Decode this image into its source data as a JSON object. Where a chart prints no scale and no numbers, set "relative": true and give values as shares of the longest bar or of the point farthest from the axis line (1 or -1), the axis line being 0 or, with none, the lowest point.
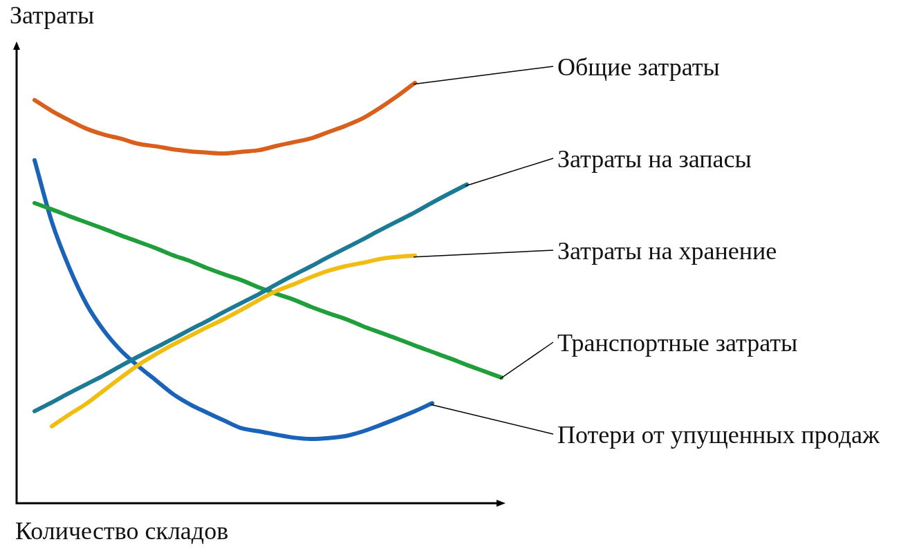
{
  "chart_data": {
    "type": "line",
    "xlabel": "Количество складов",
    "ylabel": "Затраты",
    "relative": true,
    "categories": [
      null,
      null,
      null,
      null,
      null,
      null,
      null,
      null,
      null,
      null,
      null,
      null,
      null,
      null,
      null,
      null,
      null,
      null,
      null,
      null,
      null,
      null,
      null,
      null,
      null,
      null,
      null,
      null,
      null
    ],
    "series": [
      {
        "name": "Общие затраты",
        "color": "#d95f1c",
        "values": [
          null,
          0.959,
          0.933,
          0.911,
          0.891,
          0.877,
          0.867,
          0.855,
          0.849,
          0.842,
          0.837,
          0.834,
          0.832,
          0.836,
          0.84,
          0.85,
          0.859,
          0.868,
          0.883,
          0.898,
          0.916,
          0.941,
          0.969,
          1,
          null,
          null,
          null,
          null,
          null
        ]
      },
      {
        "name": "Затраты на запасы",
        "color": "#1d7a94",
        "values": [
          null,
          0.219,
          0.24,
          0.262,
          0.283,
          0.304,
          0.327,
          0.349,
          0.37,
          0.391,
          0.413,
          0.434,
          0.456,
          0.477,
          0.498,
          0.521,
          0.543,
          0.564,
          0.586,
          0.607,
          0.628,
          0.65,
          0.671,
          0.692,
          0.715,
          0.737,
          0.758,
          null,
          null
        ]
      },
      {
        "name": "Затраты на хранение",
        "color": "#f2bd12",
        "values": [
          null,
          null,
          0.183,
          0.211,
          0.237,
          0.268,
          0.299,
          0.329,
          0.354,
          0.377,
          0.398,
          0.419,
          0.439,
          0.461,
          0.484,
          0.505,
          0.521,
          0.538,
          0.553,
          0.564,
          0.572,
          0.581,
          0.586,
          0.589,
          null,
          null,
          null,
          null,
          null
        ]
      },
      {
        "name": "Транспортные затраты",
        "color": "#1f9e3b",
        "values": [
          null,
          0.714,
          0.699,
          0.683,
          0.668,
          0.653,
          0.637,
          0.622,
          0.607,
          0.59,
          0.576,
          0.559,
          0.544,
          0.53,
          0.513,
          0.498,
          0.484,
          0.467,
          0.452,
          0.438,
          0.421,
          0.406,
          0.391,
          0.375,
          0.36,
          0.345,
          0.329,
          0.314,
          0.299
        ]
      },
      {
        "name": "Потери от упущенных продаж",
        "color": "#1a63b8",
        "values": [
          null,
          0.816,
          0.669,
          0.561,
          0.474,
          0.411,
          0.363,
          0.326,
          0.293,
          0.26,
          0.235,
          0.215,
          0.196,
          0.178,
          0.171,
          0.163,
          0.156,
          0.153,
          0.155,
          0.16,
          0.171,
          0.186,
          0.202,
          0.219,
          0.238,
          null,
          null,
          null,
          null
        ]
      }
    ]
  }
}
